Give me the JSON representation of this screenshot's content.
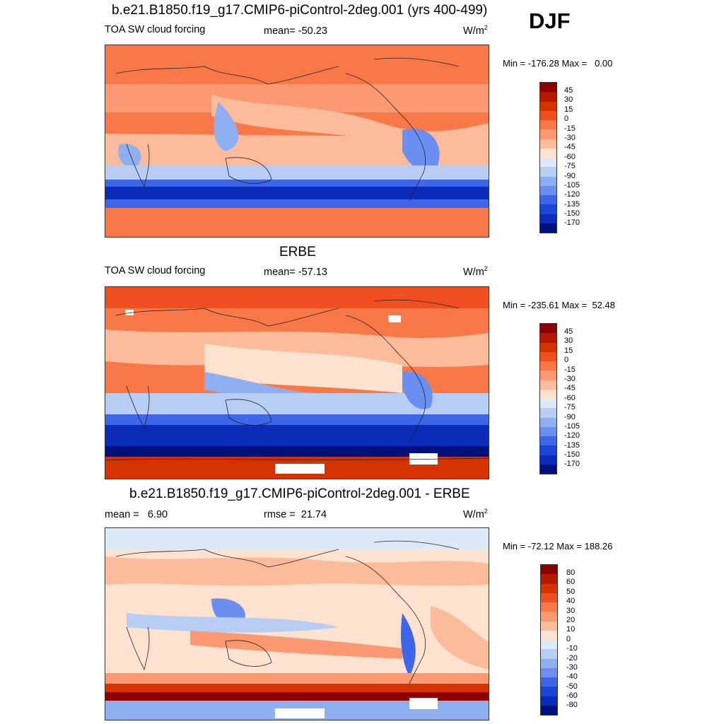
{
  "season": "DJF",
  "panels": [
    {
      "title": "b.e21.B1850.f19_g17.CMIP6-piControl-2deg.001 (yrs 400-499)",
      "left_label": "TOA SW cloud forcing",
      "center_label": "mean= -50.23",
      "units": "W/m",
      "units_sup": "2",
      "minmax": "Min = -176.28 Max =   0.00",
      "legend_ticks": [
        "45",
        "30",
        "15",
        "0",
        "-15",
        "-30",
        "-45",
        "-60",
        "-75",
        "-90",
        "-105",
        "-120",
        "-135",
        "-150",
        "-170"
      ]
    },
    {
      "title": "ERBE",
      "left_label": "TOA SW cloud forcing",
      "center_label": "mean= -57.13",
      "units": "W/m",
      "units_sup": "2",
      "minmax": "Min = -235.61 Max =  52.48",
      "legend_ticks": [
        "45",
        "30",
        "15",
        "0",
        "-15",
        "-30",
        "-45",
        "-60",
        "-75",
        "-90",
        "-105",
        "-120",
        "-135",
        "-150",
        "-170"
      ]
    },
    {
      "title": "b.e21.B1850.f19_g17.CMIP6-piControl-2deg.001 - ERBE",
      "left_label": "mean =   6.90",
      "center_label": "rmse =  21.74",
      "units": "W/m",
      "units_sup": "2",
      "minmax": "Min = -72.12 Max = 188.26",
      "legend_ticks": [
        "80",
        "60",
        "50",
        "40",
        "30",
        "20",
        "10",
        "0",
        "-10",
        "-20",
        "-30",
        "-40",
        "-50",
        "-60",
        "-80"
      ]
    }
  ],
  "colors": {
    "scale": [
      "#8b0000",
      "#b31a00",
      "#d73300",
      "#f05020",
      "#f87848",
      "#fb9a72",
      "#fcbc9c",
      "#fde2d0",
      "#dce9f7",
      "#b7cdf4",
      "#8fb0f0",
      "#6b8ff0",
      "#3d66e8",
      "#1c45d8",
      "#0a2cb8",
      "#02107c"
    ]
  }
}
